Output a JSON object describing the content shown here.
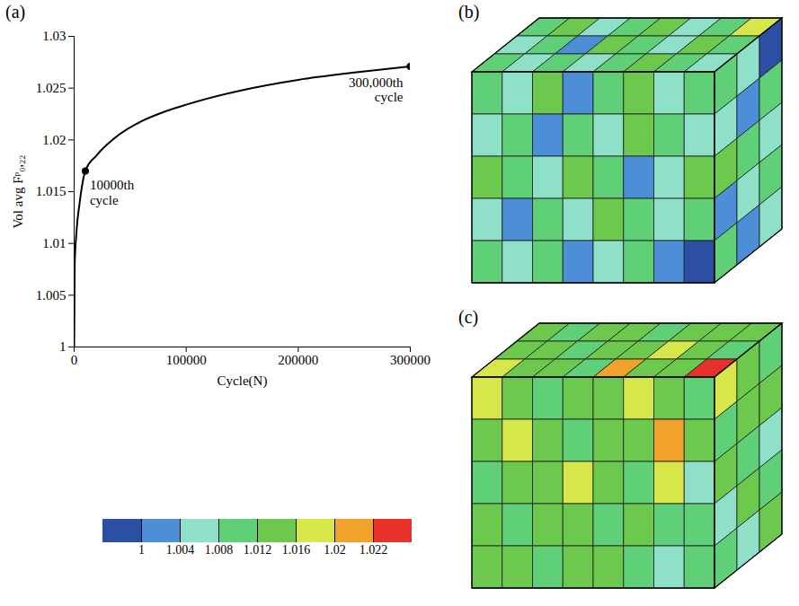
{
  "chart_data": {
    "type": "line",
    "panel_label": "(a)",
    "x_label": "Cycle(N)",
    "y_label": "Vol avg Fᵖ₀,₂₂",
    "x": [
      0,
      500,
      2000,
      5000,
      10000,
      20000,
      40000,
      60000,
      80000,
      100000,
      150000,
      200000,
      250000,
      300000
    ],
    "values": [
      1.0,
      1.008,
      1.011,
      1.014,
      1.017,
      1.0185,
      1.0205,
      1.0218,
      1.0227,
      1.0234,
      1.0248,
      1.0258,
      1.0265,
      1.0271
    ],
    "color": "#000000",
    "xlim": [
      0,
      300000
    ],
    "xticks": [
      0,
      100000,
      200000,
      300000
    ],
    "ylim": [
      1,
      1.03
    ],
    "yticks": [
      1,
      1.005,
      1.01,
      1.015,
      1.02,
      1.025,
      1.03
    ],
    "annotations": [
      {
        "x": 10000,
        "y": 1.017,
        "text": "10000th cycle"
      },
      {
        "x": 300000,
        "y": 1.0271,
        "text": "300,000th cycle"
      }
    ]
  },
  "panels": [
    {
      "label": "(b)",
      "faces": {
        "front": [
          [
            1.01,
            1.006,
            1.013,
            1.002,
            1.009,
            1.014,
            1.006,
            1.01
          ],
          [
            1.006,
            1.011,
            1.002,
            1.009,
            1.006,
            1.013,
            1.01,
            1.005
          ],
          [
            1.013,
            1.009,
            1.006,
            1.014,
            1.01,
            1.002,
            1.007,
            1.012
          ],
          [
            1.007,
            1.002,
            1.011,
            1.006,
            1.013,
            1.009,
            1.005,
            1.01
          ],
          [
            1.011,
            1.006,
            1.009,
            1.003,
            1.007,
            1.01,
            1.002,
            0.999
          ]
        ],
        "top": [
          [
            1.009,
            1.013,
            1.006,
            1.01,
            1.014,
            1.007,
            1.011,
            1.017
          ],
          [
            1.006,
            1.01,
            1.002,
            1.013,
            1.009,
            1.006,
            1.013,
            1.01
          ],
          [
            1.011,
            1.007,
            1.01,
            1.006,
            1.01,
            1.013,
            1.009,
            1.006
          ]
        ],
        "side": [
          [
            1.01,
            1.006,
            0.999
          ],
          [
            1.006,
            1.002,
            1.009
          ],
          [
            1.013,
            1.009,
            1.006
          ],
          [
            1.002,
            1.006,
            1.01
          ],
          [
            1.009,
            1.002,
            1.006
          ]
        ]
      }
    },
    {
      "label": "(c)",
      "faces": {
        "front": [
          [
            1.017,
            1.013,
            1.01,
            1.014,
            1.013,
            1.018,
            1.013,
            1.01
          ],
          [
            1.013,
            1.018,
            1.014,
            1.01,
            1.013,
            1.014,
            1.021,
            1.013
          ],
          [
            1.01,
            1.013,
            1.013,
            1.017,
            1.014,
            1.01,
            1.018,
            1.006
          ],
          [
            1.014,
            1.01,
            1.013,
            1.014,
            1.01,
            1.013,
            1.01,
            1.009
          ],
          [
            1.013,
            1.014,
            1.01,
            1.013,
            1.013,
            1.01,
            1.006,
            1.01
          ]
        ],
        "top": [
          [
            1.013,
            1.01,
            1.014,
            1.013,
            1.01,
            1.013,
            1.014,
            1.013
          ],
          [
            1.014,
            1.013,
            1.01,
            1.014,
            1.013,
            1.017,
            1.013,
            1.01
          ],
          [
            1.018,
            1.014,
            1.013,
            1.01,
            1.021,
            1.013,
            1.014,
            1.023
          ]
        ],
        "side": [
          [
            1.017,
            1.013,
            1.01
          ],
          [
            1.01,
            1.014,
            1.013
          ],
          [
            1.013,
            1.01,
            1.006
          ],
          [
            1.006,
            1.013,
            1.01
          ],
          [
            1.01,
            1.006,
            1.013
          ]
        ]
      }
    }
  ],
  "colorbar": {
    "thresholds": [
      1,
      1.004,
      1.008,
      1.012,
      1.016,
      1.02,
      1.022
    ],
    "colors": [
      "#2d4fa3",
      "#4d8fd6",
      "#8ee0c9",
      "#5fcf78",
      "#6dc94e",
      "#d7e64a",
      "#f0a22a",
      "#e8312a"
    ]
  }
}
